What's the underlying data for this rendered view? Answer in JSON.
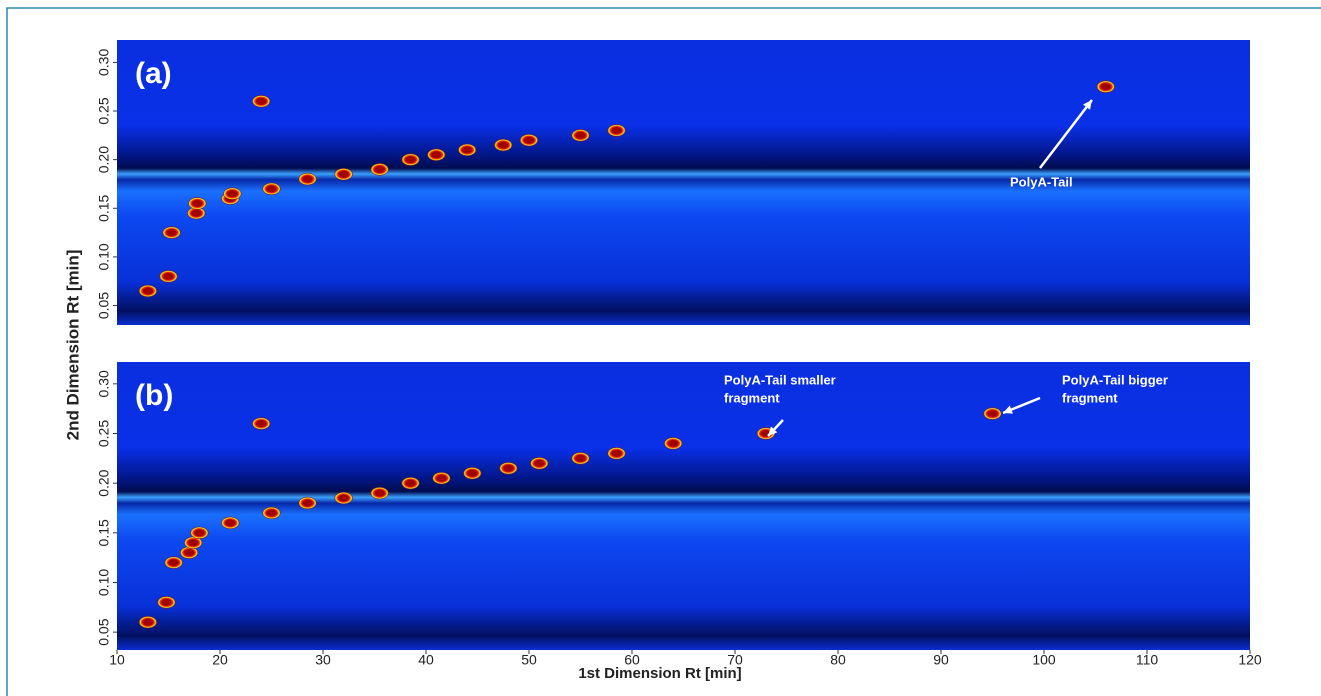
{
  "chart_data": [
    {
      "type": "scatter",
      "title": "(a)",
      "ylabel": "2nd Dimension Rt [min]",
      "x": [
        13,
        15,
        15.3,
        17.7,
        17.8,
        21,
        21.2,
        24,
        25,
        28.5,
        32,
        35.5,
        38.5,
        41,
        44,
        47.5,
        50,
        55,
        58.5,
        106
      ],
      "values": [
        0.065,
        0.08,
        0.125,
        0.145,
        0.155,
        0.16,
        0.165,
        0.26,
        0.17,
        0.18,
        0.185,
        0.19,
        0.2,
        0.205,
        0.21,
        0.215,
        0.22,
        0.225,
        0.23,
        0.275
      ],
      "color": "#a00000",
      "xlim": [
        10,
        120
      ],
      "ylim": [
        0.03,
        0.323
      ],
      "yticks": [
        0.05,
        {
          "value": 0.1,
          "label": "0.10"
        },
        0.15,
        {
          "value": 0.2,
          "label": "0.20"
        },
        0.25,
        {
          "value": 0.3,
          "label": "0.30"
        }
      ],
      "annotations": [
        {
          "lines": [
            "PolyA-Tail"
          ]
        }
      ]
    },
    {
      "type": "scatter",
      "title": "(b)",
      "xlabel": "1st Dimension Rt [min]",
      "x": [
        13,
        14.8,
        15.5,
        17,
        17.4,
        18,
        21,
        24,
        25,
        28.5,
        32,
        35.5,
        38.5,
        41.5,
        44.5,
        48,
        51,
        55,
        58.5,
        64,
        73,
        95
      ],
      "values": [
        0.06,
        0.08,
        0.12,
        0.13,
        0.14,
        0.15,
        0.16,
        0.26,
        0.17,
        0.18,
        0.185,
        0.19,
        0.2,
        0.205,
        0.21,
        0.215,
        0.22,
        0.225,
        0.23,
        0.24,
        0.25,
        0.27
      ],
      "color": "#a00000",
      "xlim": [
        10,
        120
      ],
      "ylim": [
        0.032,
        0.322
      ],
      "xticks": [
        10,
        20,
        30,
        40,
        50,
        60,
        70,
        80,
        90,
        100,
        110,
        120
      ],
      "yticks": [
        0.05,
        {
          "value": 0.1,
          "label": "0.10"
        },
        0.15,
        {
          "value": 0.2,
          "label": "0.20"
        },
        0.25,
        {
          "value": 0.3,
          "label": "0.30"
        }
      ],
      "annotations": [
        {
          "lines": [
            "PolyA-Tail smaller",
            "fragment"
          ]
        },
        {
          "lines": [
            "PolyA-Tail bigger",
            "fragment"
          ]
        }
      ]
    }
  ]
}
